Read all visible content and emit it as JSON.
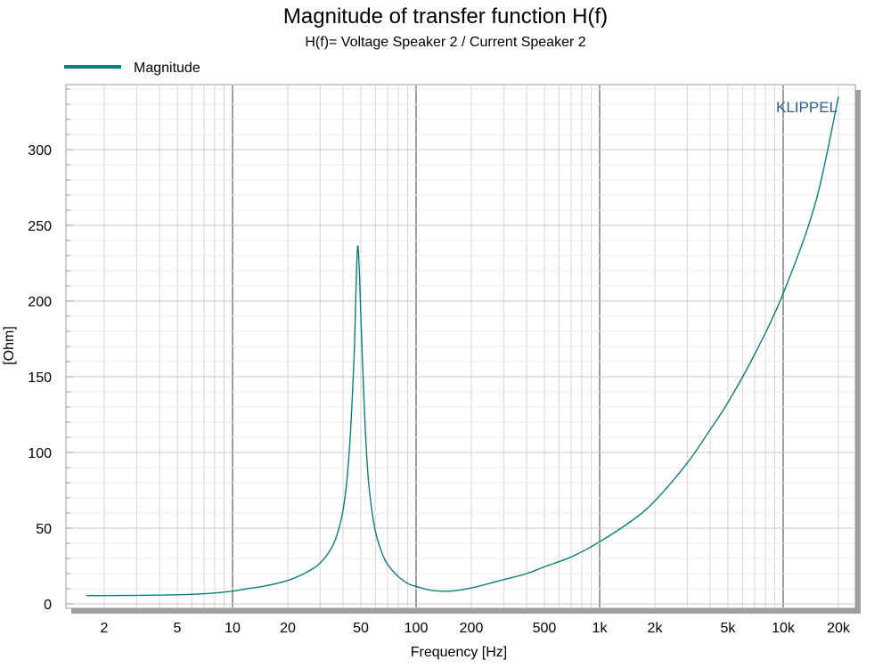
{
  "chart_data": {
    "type": "line",
    "title": "Magnitude of transfer function H(f)",
    "subtitle": "H(f)= Voltage Speaker 2 / Current Speaker 2",
    "xlabel": "Frequency [Hz]",
    "ylabel": "[Ohm]",
    "xscale": "log",
    "xlim": [
      1.5,
      25000
    ],
    "ylim": [
      0,
      345
    ],
    "grid": true,
    "legend_position": "top-left",
    "watermark": "KLIPPEL",
    "x_ticks": [
      {
        "value": 2,
        "label": "2"
      },
      {
        "value": 5,
        "label": "5"
      },
      {
        "value": 10,
        "label": "10"
      },
      {
        "value": 20,
        "label": "20"
      },
      {
        "value": 50,
        "label": "50"
      },
      {
        "value": 100,
        "label": "100"
      },
      {
        "value": 200,
        "label": "200"
      },
      {
        "value": 500,
        "label": "500"
      },
      {
        "value": 1000,
        "label": "1k"
      },
      {
        "value": 2000,
        "label": "2k"
      },
      {
        "value": 5000,
        "label": "5k"
      },
      {
        "value": 10000,
        "label": "10k"
      },
      {
        "value": 20000,
        "label": "20k"
      }
    ],
    "y_ticks": [
      0,
      50,
      100,
      150,
      200,
      250,
      300
    ],
    "series": [
      {
        "name": "Magnitude",
        "color": "#0a7e7e",
        "points": [
          [
            1.6,
            5.5
          ],
          [
            2,
            5.5
          ],
          [
            3,
            5.6
          ],
          [
            4,
            5.8
          ],
          [
            5,
            6.0
          ],
          [
            6,
            6.3
          ],
          [
            7,
            6.7
          ],
          [
            8,
            7.2
          ],
          [
            10,
            8.4
          ],
          [
            12,
            10.0
          ],
          [
            15,
            11.8
          ],
          [
            20,
            15.5
          ],
          [
            25,
            20.5
          ],
          [
            30,
            27
          ],
          [
            35,
            38
          ],
          [
            38,
            50
          ],
          [
            40,
            62
          ],
          [
            42,
            82
          ],
          [
            44,
            115
          ],
          [
            46,
            165
          ],
          [
            47,
            205
          ],
          [
            48,
            236
          ],
          [
            49,
            222
          ],
          [
            50,
            190
          ],
          [
            52,
            135
          ],
          [
            54,
            95
          ],
          [
            56,
            72
          ],
          [
            60,
            48
          ],
          [
            65,
            34
          ],
          [
            70,
            26
          ],
          [
            80,
            18
          ],
          [
            90,
            13.5
          ],
          [
            100,
            11.5
          ],
          [
            120,
            9.0
          ],
          [
            140,
            8.4
          ],
          [
            160,
            8.6
          ],
          [
            200,
            10.5
          ],
          [
            300,
            16
          ],
          [
            400,
            20
          ],
          [
            500,
            24.5
          ],
          [
            700,
            31
          ],
          [
            1000,
            41
          ],
          [
            1500,
            55
          ],
          [
            2000,
            68
          ],
          [
            3000,
            93
          ],
          [
            4000,
            115
          ],
          [
            5000,
            133
          ],
          [
            7000,
            165
          ],
          [
            10000,
            205
          ],
          [
            15000,
            265
          ],
          [
            20000,
            335
          ]
        ]
      }
    ]
  }
}
